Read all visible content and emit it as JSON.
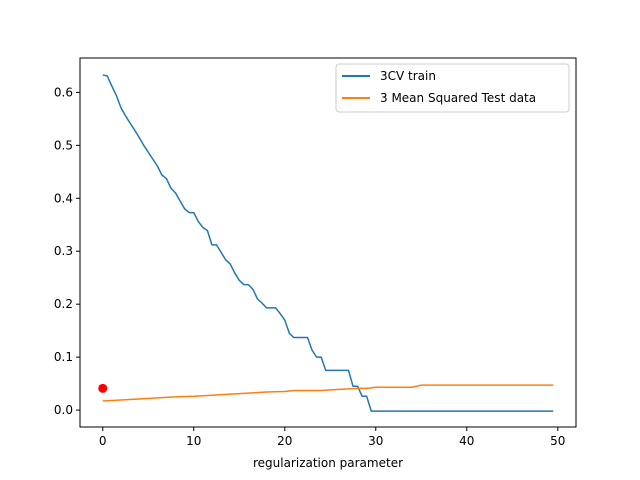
{
  "chart_data": {
    "type": "line",
    "title": "",
    "xlabel": "regularization parameter",
    "ylabel": "",
    "xlim": [
      -2.5,
      52
    ],
    "ylim": [
      -0.032,
      0.665
    ],
    "xticks": [
      0,
      10,
      20,
      30,
      40,
      50
    ],
    "xtick_labels": [
      "0",
      "10",
      "20",
      "30",
      "40",
      "50"
    ],
    "yticks": [
      0.0,
      0.1,
      0.2,
      0.3,
      0.4,
      0.5,
      0.6
    ],
    "ytick_labels": [
      "0.0",
      "0.1",
      "0.2",
      "0.3",
      "0.4",
      "0.5",
      "0.6"
    ],
    "grid": false,
    "legend_position": "upper right",
    "series": [
      {
        "name": "3CV train",
        "color": "#1f77b4",
        "x": [
          0,
          0.5,
          1,
          1.5,
          2,
          2.5,
          3,
          3.5,
          4,
          4.5,
          5,
          5.5,
          6,
          6.5,
          7,
          7.5,
          8,
          8.5,
          9,
          9.5,
          10,
          10.5,
          11,
          11.5,
          12,
          12.5,
          13,
          13.5,
          14,
          14.5,
          15,
          15.5,
          16,
          16.5,
          17,
          17.5,
          18,
          18.5,
          19,
          19.5,
          20,
          20.5,
          21,
          21.5,
          22,
          22.5,
          23,
          23.5,
          24,
          24.5,
          25,
          25.5,
          26,
          26.5,
          27,
          27.5,
          28,
          28.5,
          29,
          29.5,
          30,
          35,
          40,
          45,
          49.5
        ],
        "values": [
          0.633,
          0.631,
          0.612,
          0.594,
          0.571,
          0.556,
          0.542,
          0.529,
          0.515,
          0.5,
          0.487,
          0.474,
          0.461,
          0.444,
          0.437,
          0.419,
          0.41,
          0.395,
          0.38,
          0.373,
          0.373,
          0.356,
          0.345,
          0.339,
          0.312,
          0.312,
          0.298,
          0.284,
          0.276,
          0.259,
          0.245,
          0.237,
          0.237,
          0.228,
          0.21,
          0.202,
          0.193,
          0.193,
          0.193,
          0.182,
          0.17,
          0.145,
          0.137,
          0.137,
          0.137,
          0.137,
          0.113,
          0.1,
          0.1,
          0.075,
          0.075,
          0.075,
          0.075,
          0.075,
          0.075,
          0.045,
          0.045,
          0.026,
          0.026,
          -0.002,
          -0.002,
          -0.002,
          -0.002,
          -0.002,
          -0.002
        ]
      },
      {
        "name": "3 Mean Squared Test data",
        "color": "#ff7f0e",
        "x": [
          0,
          2,
          4,
          6,
          8,
          10,
          12,
          14,
          16,
          18,
          20,
          21,
          24,
          26,
          27,
          28,
          29,
          30,
          32,
          34,
          35,
          40,
          45,
          49.5
        ],
        "values": [
          0.017,
          0.019,
          0.021,
          0.023,
          0.025,
          0.026,
          0.028,
          0.03,
          0.032,
          0.034,
          0.035,
          0.037,
          0.037,
          0.039,
          0.04,
          0.041,
          0.041,
          0.043,
          0.043,
          0.043,
          0.047,
          0.047,
          0.047,
          0.047
        ]
      }
    ],
    "markers": [
      {
        "x": 0,
        "y": 0.041,
        "color": "#ff0000"
      }
    ]
  }
}
